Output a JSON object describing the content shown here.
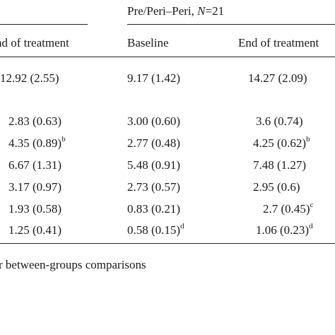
{
  "table": {
    "group_header": {
      "prefix": "Pre/Peri–Peri, ",
      "n_symbol": "N",
      "n_value": "=21"
    },
    "columns": [
      "nd of treatment",
      "Baseline",
      "End of treatment"
    ],
    "rows": [
      {
        "c1": {
          "value": "12.92 (2.55)",
          "sup": ""
        },
        "c2": {
          "value": "9.17 (1.42)",
          "sup": ""
        },
        "c3": {
          "value": "14.27 (2.09)",
          "sup": ""
        }
      },
      {
        "c1": {
          "value": "2.83 (0.63)",
          "sup": ""
        },
        "c2": {
          "value": "3.00 (0.60)",
          "sup": ""
        },
        "c3": {
          "value": "3.6 (0.74)",
          "sup": ""
        }
      },
      {
        "c1": {
          "value": "4.35 (0.89)",
          "sup": "b"
        },
        "c2": {
          "value": "2.77 (0.48)",
          "sup": ""
        },
        "c3": {
          "value": "4.25 (0.62)",
          "sup": "b"
        }
      },
      {
        "c1": {
          "value": "6.67 (1.31)",
          "sup": ""
        },
        "c2": {
          "value": "5.48 (0.91)",
          "sup": ""
        },
        "c3": {
          "value": "7.48 (1.27)",
          "sup": ""
        }
      },
      {
        "c1": {
          "value": "3.17 (0.97)",
          "sup": ""
        },
        "c2": {
          "value": "2.73 (0.57)",
          "sup": ""
        },
        "c3": {
          "value": "2.95 (0.6)",
          "sup": ""
        }
      },
      {
        "c1": {
          "value": "1.93 (0.58)",
          "sup": ""
        },
        "c2": {
          "value": "0.83 (0.21)",
          "sup": ""
        },
        "c3": {
          "value": "2.7 (0.45)",
          "sup": "c"
        }
      },
      {
        "c1": {
          "value": "1.25 (0.41)",
          "sup": ""
        },
        "c2": {
          "value": "0.58 (0.15)",
          "sup": "d"
        },
        "c3": {
          "value": "1.06 (0.23)",
          "sup": "d"
        }
      }
    ],
    "footnote": "r between-groups comparisons"
  }
}
